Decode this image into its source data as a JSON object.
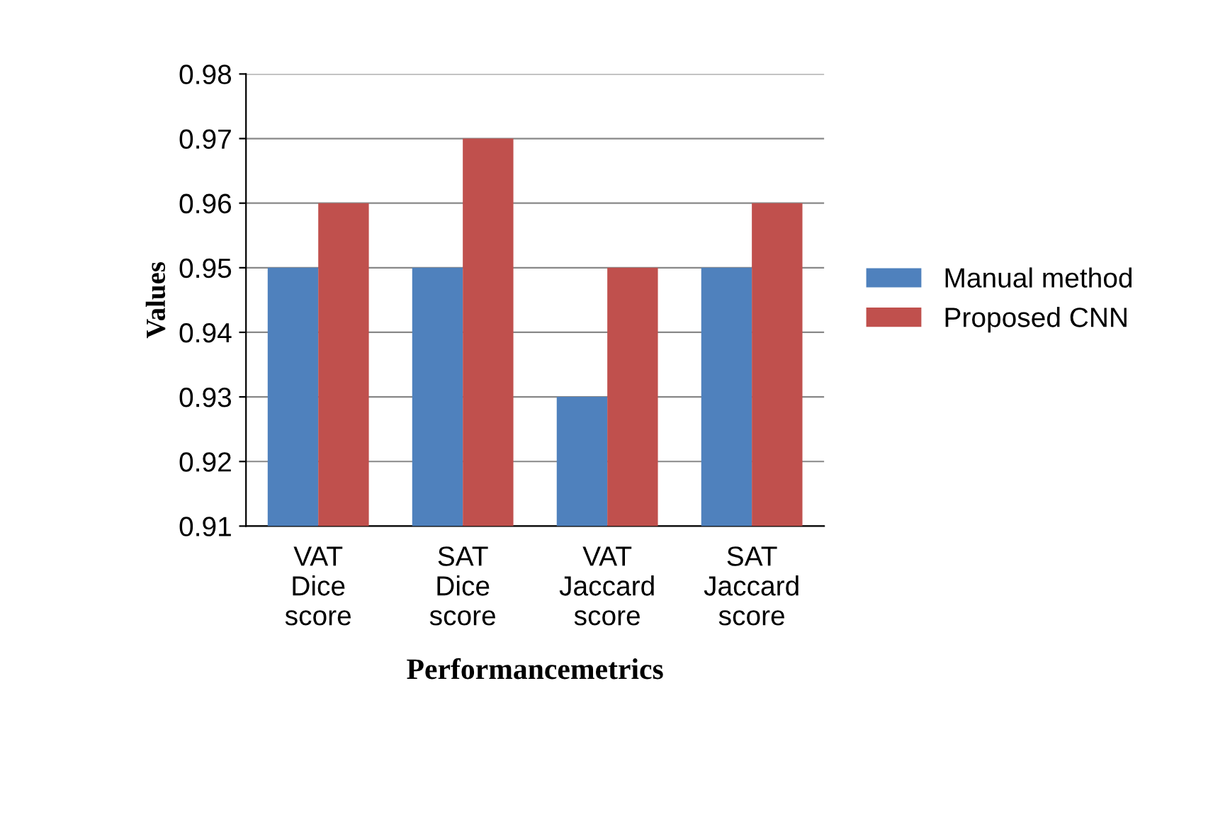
{
  "chart_data": {
    "type": "bar",
    "xlabel": "Performancemetrics",
    "ylabel": "Values",
    "categories": [
      "VAT\nDice\nscore",
      "SAT\nDice\nscore",
      "VAT\nJaccard\nscore",
      "SAT\nJaccard\nscore"
    ],
    "series": [
      {
        "name": "Manual method",
        "color": "#4f81bd",
        "values": [
          0.95,
          0.95,
          0.93,
          0.95
        ]
      },
      {
        "name": "Proposed CNN",
        "color": "#c0504d",
        "values": [
          0.96,
          0.97,
          0.95,
          0.96
        ]
      }
    ],
    "ylim": [
      0.91,
      0.98
    ],
    "yticks": [
      0.91,
      0.92,
      0.93,
      0.94,
      0.95,
      0.96,
      0.97,
      0.98
    ],
    "grid": "y",
    "legend": "right"
  }
}
